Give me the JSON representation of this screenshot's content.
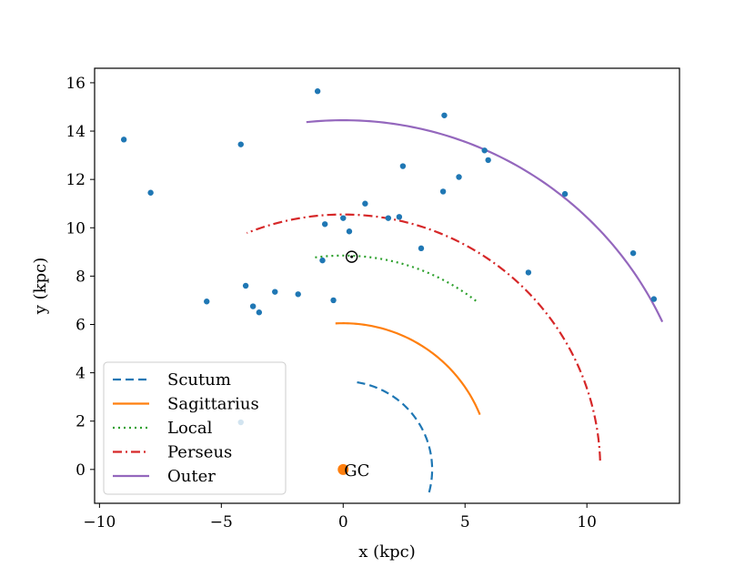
{
  "chart_data": {
    "type": "scatter",
    "title": "",
    "xlabel": "x (kpc)",
    "ylabel": "y (kpc)",
    "xlim": [
      -10.2,
      13.8
    ],
    "ylim": [
      -1.4,
      16.6
    ],
    "xticks": [
      -10,
      -5,
      0,
      5,
      10
    ],
    "xtick_labels": [
      "−10",
      "−5",
      "0",
      "5",
      "10"
    ],
    "yticks": [
      0,
      2,
      4,
      6,
      8,
      10,
      12,
      14,
      16
    ],
    "ytick_labels": [
      "0",
      "2",
      "4",
      "6",
      "8",
      "10",
      "12",
      "14",
      "16"
    ],
    "grid": false,
    "legend_location": "lower-left",
    "point_color": "#1f77b4",
    "points": [
      {
        "x": -9.0,
        "y": 13.65
      },
      {
        "x": -7.9,
        "y": 11.45
      },
      {
        "x": -5.6,
        "y": 6.95
      },
      {
        "x": -4.2,
        "y": 13.45
      },
      {
        "x": -4.0,
        "y": 7.6
      },
      {
        "x": -3.7,
        "y": 6.75
      },
      {
        "x": -3.45,
        "y": 6.5
      },
      {
        "x": -2.8,
        "y": 7.35
      },
      {
        "x": -1.85,
        "y": 7.25
      },
      {
        "x": -1.05,
        "y": 15.65
      },
      {
        "x": -0.85,
        "y": 8.65
      },
      {
        "x": -0.75,
        "y": 10.15
      },
      {
        "x": -0.4,
        "y": 7.0
      },
      {
        "x": 0.0,
        "y": 10.4
      },
      {
        "x": 0.25,
        "y": 9.85
      },
      {
        "x": 0.9,
        "y": 11.0
      },
      {
        "x": 1.85,
        "y": 10.4
      },
      {
        "x": 2.3,
        "y": 10.45
      },
      {
        "x": 2.45,
        "y": 12.55
      },
      {
        "x": 3.2,
        "y": 9.15
      },
      {
        "x": 4.1,
        "y": 11.5
      },
      {
        "x": 4.15,
        "y": 14.65
      },
      {
        "x": 4.75,
        "y": 12.1
      },
      {
        "x": 5.8,
        "y": 13.2
      },
      {
        "x": 5.95,
        "y": 12.8
      },
      {
        "x": 7.6,
        "y": 8.15
      },
      {
        "x": 9.1,
        "y": 11.4
      },
      {
        "x": 11.9,
        "y": 8.95
      },
      {
        "x": 12.75,
        "y": 7.05
      },
      {
        "x": -4.2,
        "y": 1.95
      }
    ],
    "arms": [
      {
        "name": "Scutum",
        "color": "#1f77b4",
        "dash": "dashed",
        "radius": 3.65,
        "theta_start_deg": -15,
        "theta_end_deg": 83
      },
      {
        "name": "Sagittarius",
        "color": "#ff7f0e",
        "dash": "solid",
        "radius": 6.05,
        "theta_start_deg": 22,
        "theta_end_deg": 93
      },
      {
        "name": "Local",
        "color": "#2ca02c",
        "dash": "dotted",
        "radius": 8.85,
        "theta_start_deg": 52,
        "theta_end_deg": 98
      },
      {
        "name": "Perseus",
        "color": "#d62728",
        "dash": "dashdot",
        "radius": 10.55,
        "theta_start_deg": 2,
        "theta_end_deg": 112
      },
      {
        "name": "Outer",
        "color": "#9467bd",
        "dash": "solid",
        "radius": 14.45,
        "theta_start_deg": 25,
        "theta_end_deg": 96
      }
    ],
    "galactic_center": {
      "label": "GC",
      "x": 0.0,
      "y": 0.0,
      "color": "#ff7f0e"
    },
    "sun": {
      "x": 0.35,
      "y": 8.8
    }
  }
}
